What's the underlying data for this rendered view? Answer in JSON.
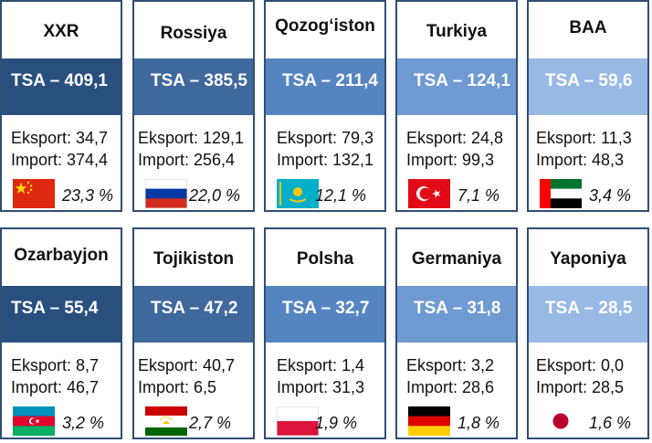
{
  "cards": [
    {
      "country": "XXR",
      "tsa": "TSA – 409,1",
      "export": "Eksport: 34,7",
      "import": "Import: 374,4",
      "share": "23,3 %",
      "flag": "china-flag-icon",
      "band_color": "#294f7e"
    },
    {
      "country": "Rossiya",
      "tsa": "TSA – 385,5",
      "export": "Eksport: 129,1",
      "import": "Import: 256,4",
      "share": "22,0 %",
      "flag": "russia-flag-icon",
      "band_color": "#3f689c"
    },
    {
      "country": "Qozog‘iston",
      "tsa": "TSA – 211,4",
      "export": "Eksport: 79,3",
      "import": "Import: 132,1",
      "share": "12,1 %",
      "flag": "kazakhstan-flag-icon",
      "band_color": "#5585c0"
    },
    {
      "country": "Turkiya",
      "tsa": "TSA – 124,1",
      "export": "Eksport: 24,8",
      "import": "Import: 99,3",
      "share": "7,1 %",
      "flag": "turkey-flag-icon",
      "band_color": "#6f9ad2"
    },
    {
      "country": "BAA",
      "tsa": "TSA – 59,6",
      "export": "Eksport: 11,3",
      "import": "Import: 48,3",
      "share": "3,4 %",
      "flag": "uae-flag-icon",
      "band_color": "#98b9e4"
    },
    {
      "country": "Ozarbayjon",
      "tsa": "TSA – 55,4",
      "export": "Eksport: 8,7",
      "import": "Import: 46,7",
      "share": "3,2 %",
      "flag": "azerbaijan-flag-icon",
      "band_color": "#294f7e"
    },
    {
      "country": "Tojikiston",
      "tsa": "TSA – 47,2",
      "export": "Eksport: 40,7",
      "import": "Import: 6,5",
      "share": "2,7 %",
      "flag": "tajikistan-flag-icon",
      "band_color": "#3f689c"
    },
    {
      "country": "Polsha",
      "tsa": "TSA – 32,7",
      "export": "Eksport: 1,4",
      "import": "Import: 31,3",
      "share": "1,9 %",
      "flag": "poland-flag-icon",
      "band_color": "#5585c0"
    },
    {
      "country": "Germaniya",
      "tsa": "TSA – 31,8",
      "export": "Eksport: 3,2",
      "import": "Import: 28,6",
      "share": "1,8 %",
      "flag": "germany-flag-icon",
      "band_color": "#6f9ad2"
    },
    {
      "country": "Yaponiya",
      "tsa": "TSA – 28,5",
      "export": "Eksport: 0,0",
      "import": "Import: 28,5",
      "share": "1,6 %",
      "flag": "japan-flag-icon",
      "band_color": "#98b9e4"
    }
  ]
}
